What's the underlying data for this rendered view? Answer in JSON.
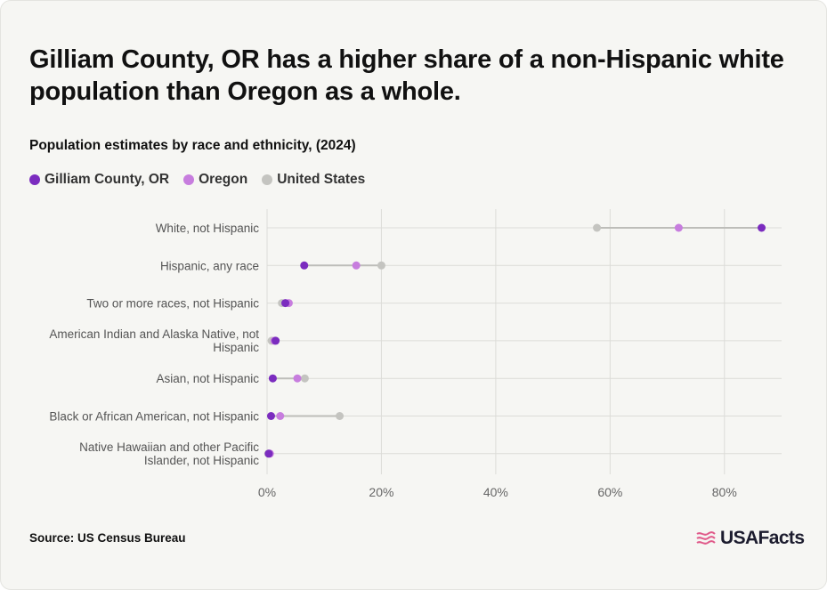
{
  "header": {
    "title": "Gilliam County, OR has a higher share of a non-Hispanic white population than Oregon as a whole.",
    "subtitle": "Population estimates by race and ethnicity, (2024)"
  },
  "footer": {
    "source": "Source: US Census Bureau",
    "brand": "USAFacts"
  },
  "colors": {
    "gilliam": "#7b2cbf",
    "oregon": "#c77dde",
    "us": "#c4c4c0",
    "connector": "#bdbdb9",
    "grid": "#dcdcd8",
    "brand_flag": "#e05a8a"
  },
  "chart_data": {
    "type": "dot-range",
    "title": "Gilliam County, OR has a higher share of a non-Hispanic white population than Oregon as a whole.",
    "subtitle": "Population estimates by race and ethnicity, (2024)",
    "legend_position": "top-left",
    "grid": true,
    "xlim": [
      0,
      90
    ],
    "x_ticks": [
      0,
      20,
      40,
      60,
      80
    ],
    "x_tick_labels": [
      "0%",
      "20%",
      "40%",
      "60%",
      "80%"
    ],
    "categories": [
      [
        "White, not Hispanic"
      ],
      [
        "Hispanic, any race"
      ],
      [
        "Two or more races, not Hispanic"
      ],
      [
        "American Indian and Alaska Native, not",
        "Hispanic"
      ],
      [
        "Asian, not Hispanic"
      ],
      [
        "Black or African American, not Hispanic"
      ],
      [
        "Native Hawaiian and other Pacific",
        "Islander, not Hispanic"
      ]
    ],
    "series": [
      {
        "name": "Gilliam County, OR",
        "color_key": "gilliam",
        "values": [
          86.5,
          6.5,
          3.2,
          1.5,
          1.0,
          0.7,
          0.3
        ]
      },
      {
        "name": "Oregon",
        "color_key": "oregon",
        "values": [
          72.0,
          15.6,
          3.8,
          1.3,
          5.3,
          2.3,
          0.5
        ]
      },
      {
        "name": "United States",
        "color_key": "us",
        "values": [
          57.7,
          20.0,
          2.6,
          0.8,
          6.6,
          12.7,
          0.2
        ]
      }
    ]
  }
}
